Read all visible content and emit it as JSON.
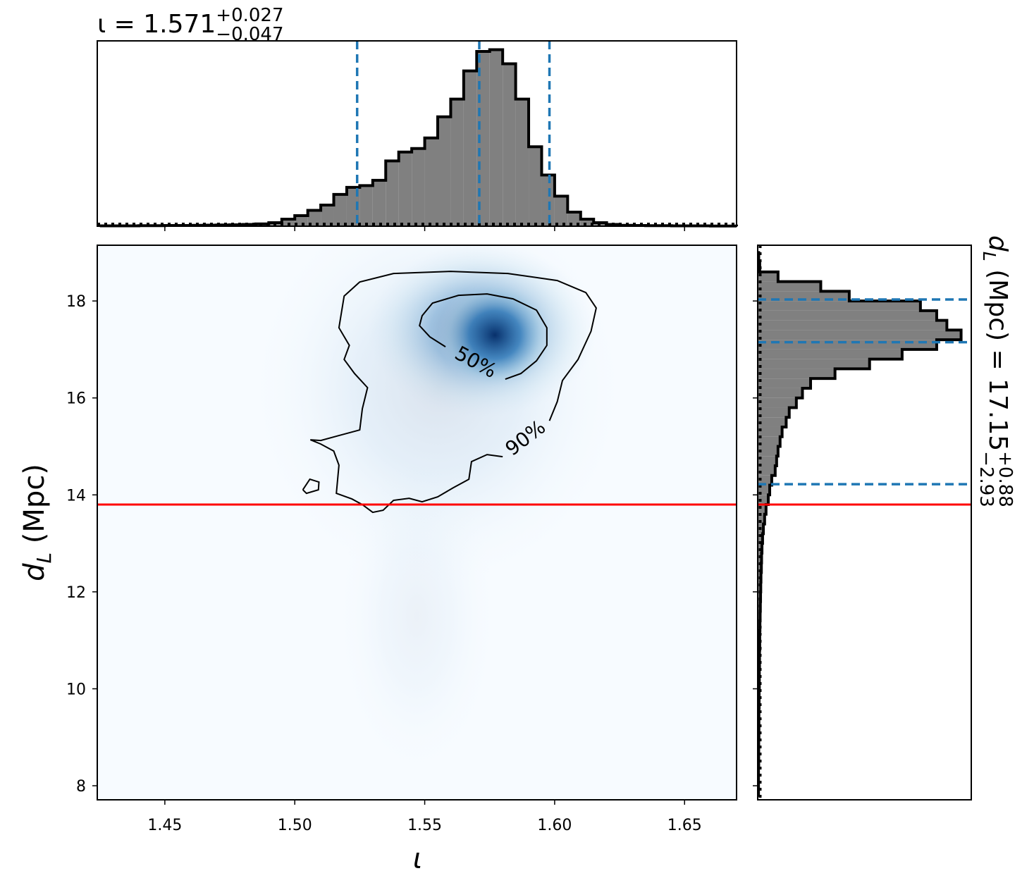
{
  "chart_data": [
    {
      "type": "histogram",
      "orientation": "vertical",
      "title": "ι = 1.571",
      "title_sup": "+0.027",
      "title_sub": "−0.047",
      "bins": [
        1.425,
        1.43,
        1.435,
        1.44,
        1.445,
        1.45,
        1.455,
        1.46,
        1.465,
        1.47,
        1.475,
        1.48,
        1.485,
        1.49,
        1.495,
        1.5,
        1.505,
        1.51,
        1.515,
        1.52,
        1.525,
        1.53,
        1.535,
        1.54,
        1.545,
        1.55,
        1.555,
        1.56,
        1.565,
        1.57,
        1.575,
        1.58,
        1.585,
        1.59,
        1.595,
        1.6,
        1.605,
        1.61,
        1.615,
        1.62,
        1.625,
        1.63,
        1.635,
        1.64,
        1.645,
        1.65,
        1.655,
        1.66,
        1.665,
        1.67
      ],
      "counts": [
        0.002,
        0.002,
        0.002,
        0.003,
        0.003,
        0.004,
        0.004,
        0.005,
        0.006,
        0.007,
        0.008,
        0.01,
        0.013,
        0.02,
        0.04,
        0.06,
        0.09,
        0.12,
        0.18,
        0.22,
        0.23,
        0.26,
        0.37,
        0.42,
        0.44,
        0.5,
        0.62,
        0.72,
        0.88,
        0.99,
        1.0,
        0.92,
        0.72,
        0.45,
        0.29,
        0.17,
        0.08,
        0.04,
        0.02,
        0.01,
        0.005,
        0.004,
        0.003,
        0.003,
        0.002,
        0.002,
        0.002,
        0.001,
        0.001
      ],
      "color": "#808080",
      "edgecolor": "#000000",
      "xlim": [
        1.424,
        1.67
      ],
      "xticks": [
        1.45,
        1.5,
        1.55,
        1.6,
        1.65
      ],
      "ylim": [
        0,
        1.05
      ],
      "quantiles": [
        1.524,
        1.571,
        1.598
      ],
      "quantile_color": "#1f77b4",
      "prior_level": 0.012
    },
    {
      "type": "density2d",
      "xlabel": "ι",
      "ylabel": "d",
      "ylabel_sub": "L",
      "ylabel_rest": " (Mpc)",
      "xlim": [
        1.424,
        1.67
      ],
      "ylim": [
        7.71,
        19.15
      ],
      "xticks": [
        {
          "value": 1.45,
          "label": "1.45"
        },
        {
          "value": 1.5,
          "label": "1.50"
        },
        {
          "value": 1.55,
          "label": "1.55"
        },
        {
          "value": 1.6,
          "label": "1.60"
        },
        {
          "value": 1.65,
          "label": "1.65"
        }
      ],
      "yticks": [
        8,
        10,
        12,
        14,
        16,
        18
      ],
      "background": "#f7fbff",
      "density_peaks": [
        {
          "x": 1.555,
          "y": 16.2,
          "sx": 0.035,
          "sy": 2.0,
          "weight": 0.12
        },
        {
          "x": 1.547,
          "y": 11.5,
          "sx": 0.015,
          "sy": 1.6,
          "weight": 0.05
        },
        {
          "x": 1.572,
          "y": 17.4,
          "sx": 0.022,
          "sy": 0.9,
          "weight": 0.5
        },
        {
          "x": 1.577,
          "y": 17.3,
          "sx": 0.011,
          "sy": 0.55,
          "weight": 1.0
        }
      ],
      "contours": [
        {
          "label": "50%",
          "x": [
            1.558,
            1.552,
            1.548,
            1.549,
            1.553,
            1.563,
            1.574,
            1.584,
            1.593,
            1.597,
            1.597,
            1.593,
            1.587,
            1.581
          ],
          "y": [
            17.055,
            17.259,
            17.491,
            17.695,
            17.956,
            18.116,
            18.145,
            18.044,
            17.811,
            17.448,
            17.084,
            16.765,
            16.503,
            16.387
          ]
        },
        {
          "label": "90%",
          "x": [
            1.598,
            1.601,
            1.603,
            1.609,
            1.614,
            1.616,
            1.612,
            1.601,
            1.582,
            1.56,
            1.538,
            1.525,
            1.519,
            1.517,
            1.521,
            1.519,
            1.523,
            1.528,
            1.526,
            1.525,
            1.517,
            1.51,
            1.506,
            1.51,
            1.515,
            1.517,
            1.516,
            1.522,
            1.526,
            1.53,
            1.534,
            1.538,
            1.544,
            1.549,
            1.555,
            1.561,
            1.567,
            1.568,
            1.574,
            1.58,
            null,
            1.5031,
            1.5058,
            1.5093,
            1.5091,
            1.5045,
            1.5031
          ],
          "y": [
            15.529,
            15.922,
            16.358,
            16.794,
            17.375,
            17.855,
            18.174,
            18.422,
            18.567,
            18.61,
            18.567,
            18.392,
            18.102,
            17.448,
            17.084,
            16.794,
            16.503,
            16.212,
            15.776,
            15.34,
            15.224,
            15.122,
            15.137,
            15.049,
            14.904,
            14.613,
            14.032,
            13.916,
            13.799,
            13.64,
            13.683,
            13.887,
            13.93,
            13.858,
            13.959,
            14.148,
            14.323,
            14.686,
            14.831,
            14.788,
            null,
            14.105,
            14.323,
            14.265,
            14.105,
            14.032,
            14.105
          ]
        }
      ],
      "truth_y": 13.8,
      "truth_color": "#ff0000"
    },
    {
      "type": "histogram",
      "orientation": "horizontal",
      "title": "d",
      "title_symbol_sub": "L",
      "title_rest": " (Mpc) = 17.15",
      "title_sup": "+0.88",
      "title_sub": "−2.93",
      "bins": [
        7.8,
        8,
        8.2,
        8.4,
        8.6,
        8.8,
        9,
        9.2,
        9.4,
        9.6,
        9.8,
        10,
        10.2,
        10.4,
        10.6,
        10.8,
        11,
        11.2,
        11.4,
        11.6,
        11.8,
        12,
        12.2,
        12.4,
        12.6,
        12.8,
        13,
        13.2,
        13.4,
        13.6,
        13.8,
        14,
        14.2,
        14.4,
        14.6,
        14.8,
        15,
        15.2,
        15.4,
        15.6,
        15.8,
        16,
        16.2,
        16.4,
        16.6,
        16.8,
        17,
        17.2,
        17.4,
        17.6,
        17.8,
        18,
        18.2,
        18.4,
        18.6,
        18.8,
        19
      ],
      "counts": [
        0.004,
        0.004,
        0.004,
        0.005,
        0.005,
        0.005,
        0.006,
        0.006,
        0.006,
        0.007,
        0.007,
        0.008,
        0.008,
        0.009,
        0.009,
        0.01,
        0.01,
        0.011,
        0.012,
        0.013,
        0.014,
        0.015,
        0.016,
        0.018,
        0.019,
        0.021,
        0.024,
        0.028,
        0.034,
        0.041,
        0.052,
        0.059,
        0.069,
        0.086,
        0.093,
        0.1,
        0.11,
        0.12,
        0.14,
        0.155,
        0.19,
        0.22,
        0.26,
        0.38,
        0.55,
        0.71,
        0.88,
        1.0,
        0.93,
        0.88,
        0.8,
        0.45,
        0.31,
        0.1,
        0.01,
        0.005
      ],
      "color": "#808080",
      "edgecolor": "#000000",
      "xlim": [
        0,
        1.05
      ],
      "ylim": [
        7.71,
        19.15
      ],
      "yticks": [
        8,
        10,
        12,
        14,
        16,
        18
      ],
      "quantiles": [
        14.22,
        17.15,
        18.03
      ],
      "quantile_color": "#1f77b4",
      "prior_level": 0.012,
      "truth_y": 13.8,
      "truth_color": "#ff0000"
    }
  ]
}
